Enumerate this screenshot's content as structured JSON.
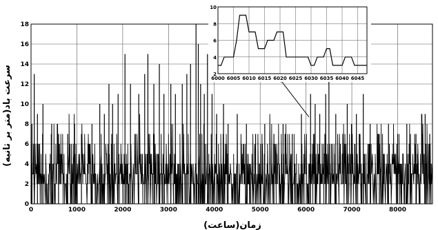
{
  "chart_data": {
    "type": "line",
    "xlabel": "زمان(ساعت)",
    "ylabel": "سرعت باد(متر بر ثانیه)",
    "xlim": [
      0,
      8760
    ],
    "ylim": [
      0,
      18
    ],
    "x_ticks": [
      0,
      1000,
      2000,
      3000,
      4000,
      5000,
      6000,
      7000,
      8000
    ],
    "y_ticks": [
      0,
      2,
      4,
      6,
      8,
      10,
      12,
      14,
      16,
      18
    ],
    "grid": true,
    "series": [
      {
        "spikes": [
          {
            "x": 20,
            "y": 8
          },
          {
            "x": 70,
            "y": 13
          },
          {
            "x": 140,
            "y": 9
          },
          {
            "x": 260,
            "y": 10
          },
          {
            "x": 450,
            "y": 8
          },
          {
            "x": 600,
            "y": 7
          },
          {
            "x": 800,
            "y": 7
          },
          {
            "x": 950,
            "y": 8
          },
          {
            "x": 1100,
            "y": 7
          },
          {
            "x": 1330,
            "y": 8
          },
          {
            "x": 1500,
            "y": 10
          },
          {
            "x": 1600,
            "y": 9
          },
          {
            "x": 1700,
            "y": 12
          },
          {
            "x": 1780,
            "y": 10
          },
          {
            "x": 1900,
            "y": 11
          },
          {
            "x": 2050,
            "y": 15
          },
          {
            "x": 2170,
            "y": 12
          },
          {
            "x": 2350,
            "y": 11
          },
          {
            "x": 2480,
            "y": 13
          },
          {
            "x": 2550,
            "y": 15
          },
          {
            "x": 2680,
            "y": 12
          },
          {
            "x": 2800,
            "y": 14
          },
          {
            "x": 2900,
            "y": 11
          },
          {
            "x": 3050,
            "y": 12
          },
          {
            "x": 3150,
            "y": 11
          },
          {
            "x": 3300,
            "y": 12
          },
          {
            "x": 3400,
            "y": 13
          },
          {
            "x": 3480,
            "y": 14
          },
          {
            "x": 3600,
            "y": 18
          },
          {
            "x": 3650,
            "y": 16
          },
          {
            "x": 3700,
            "y": 12
          },
          {
            "x": 3780,
            "y": 11
          },
          {
            "x": 3850,
            "y": 15
          },
          {
            "x": 3950,
            "y": 11
          },
          {
            "x": 4050,
            "y": 9
          },
          {
            "x": 4200,
            "y": 10
          },
          {
            "x": 4300,
            "y": 8
          },
          {
            "x": 4500,
            "y": 9
          },
          {
            "x": 4700,
            "y": 8
          },
          {
            "x": 4900,
            "y": 7
          },
          {
            "x": 5100,
            "y": 8
          },
          {
            "x": 5300,
            "y": 7
          },
          {
            "x": 5500,
            "y": 8
          },
          {
            "x": 5700,
            "y": 7
          },
          {
            "x": 5900,
            "y": 9
          },
          {
            "x": 6100,
            "y": 11
          },
          {
            "x": 6200,
            "y": 10
          },
          {
            "x": 6300,
            "y": 9
          },
          {
            "x": 6430,
            "y": 11
          },
          {
            "x": 6500,
            "y": 13
          },
          {
            "x": 6650,
            "y": 9
          },
          {
            "x": 6900,
            "y": 10
          },
          {
            "x": 7100,
            "y": 9
          },
          {
            "x": 7250,
            "y": 11
          },
          {
            "x": 7400,
            "y": 8
          },
          {
            "x": 7600,
            "y": 7
          },
          {
            "x": 7800,
            "y": 8
          },
          {
            "x": 8000,
            "y": 7
          },
          {
            "x": 8200,
            "y": 8
          },
          {
            "x": 8400,
            "y": 7
          },
          {
            "x": 8600,
            "y": 9
          },
          {
            "x": 8700,
            "y": 7
          }
        ]
      }
    ],
    "inset": {
      "type": "line",
      "xlim": [
        6000,
        6048
      ],
      "ylim": [
        2,
        10
      ],
      "x_ticks": [
        6000,
        6005,
        6010,
        6015,
        6020,
        6025,
        6030,
        6035,
        6040,
        6045
      ],
      "y_ticks": [
        2,
        4,
        6,
        8,
        10
      ],
      "grid": true,
      "x": [
        6000,
        6001,
        6002,
        6003,
        6004,
        6005,
        6006,
        6007,
        6008,
        6009,
        6010,
        6011,
        6012,
        6013,
        6014,
        6015,
        6016,
        6017,
        6018,
        6019,
        6020,
        6021,
        6022,
        6023,
        6024,
        6025,
        6026,
        6027,
        6028,
        6029,
        6030,
        6031,
        6032,
        6033,
        6034,
        6035,
        6036,
        6037,
        6038,
        6039,
        6040,
        6041,
        6042,
        6043,
        6044,
        6045,
        6046,
        6047,
        6048
      ],
      "y": [
        3,
        3,
        4,
        4,
        4,
        4,
        6,
        9,
        9,
        9,
        7,
        7,
        7,
        5,
        5,
        5,
        6,
        6,
        6,
        7,
        7,
        7,
        4,
        4,
        4,
        4,
        4,
        4,
        4,
        4,
        3,
        3,
        4,
        4,
        4,
        5,
        5,
        3,
        3,
        3,
        3,
        4,
        4,
        4,
        3,
        3,
        3,
        3,
        3
      ]
    }
  }
}
